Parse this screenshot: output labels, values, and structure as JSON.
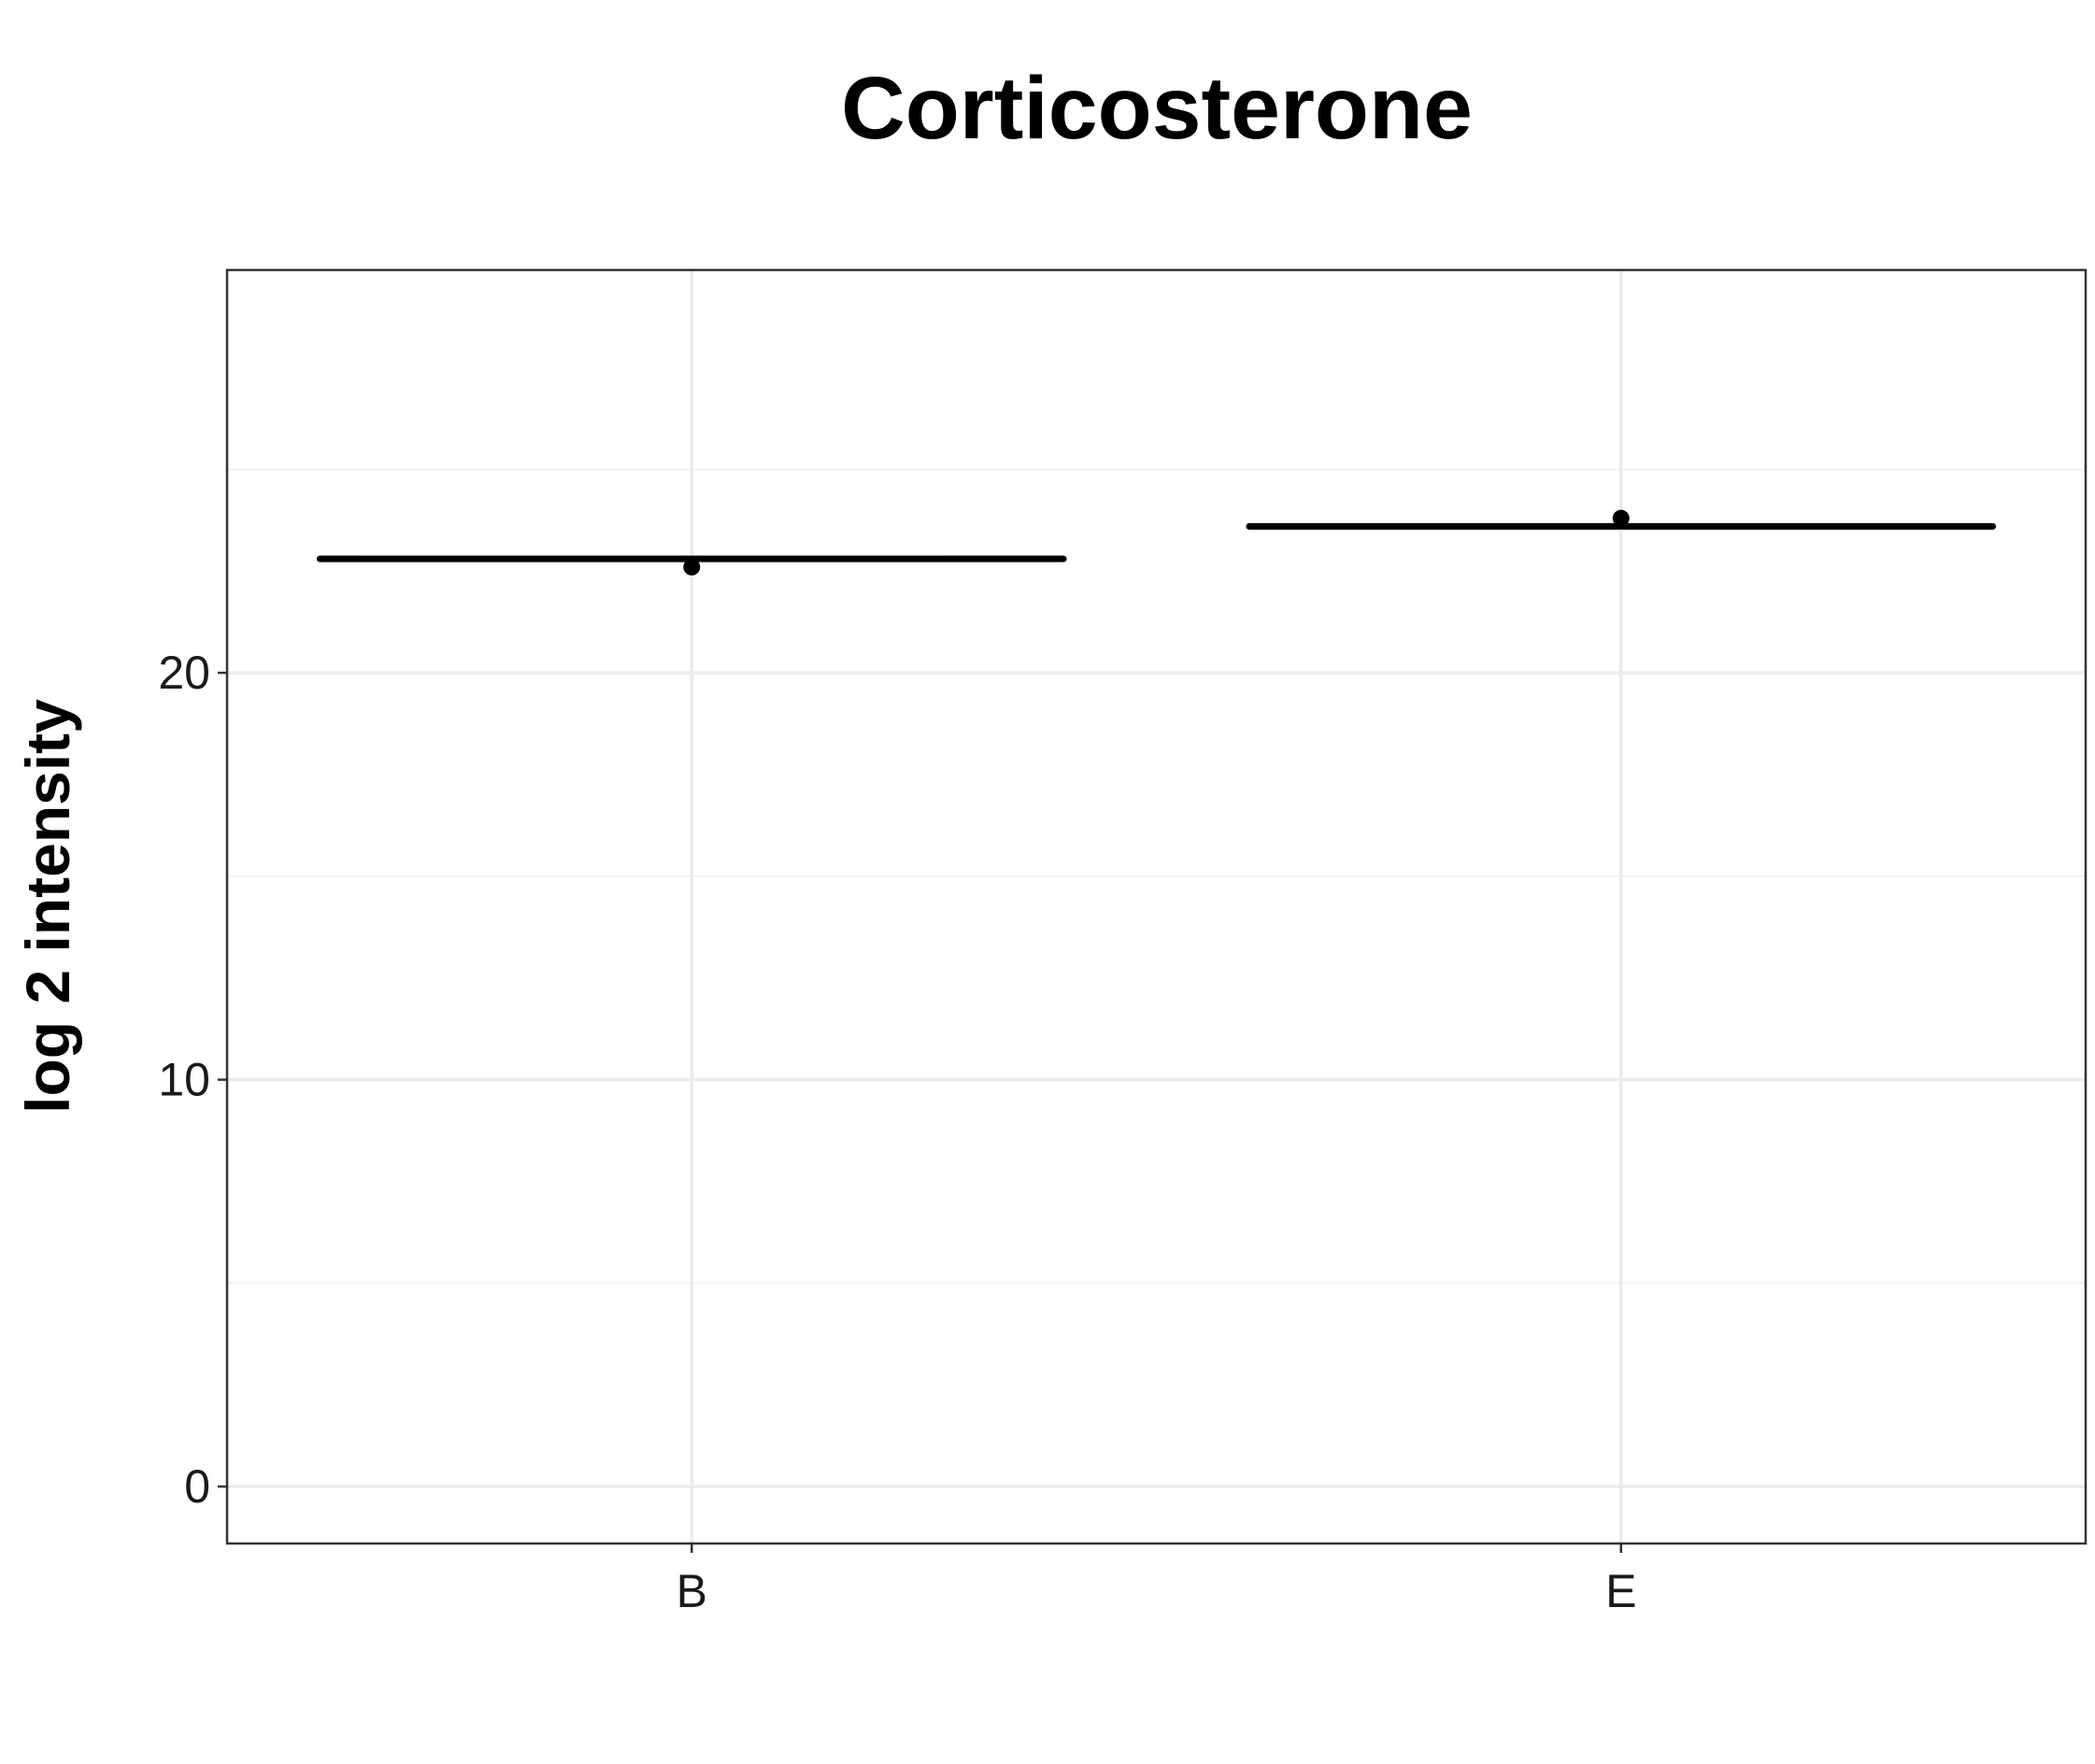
{
  "chart_data": {
    "type": "box",
    "title": "Corticosterone",
    "xlabel": "",
    "ylabel": "log 2 intensity",
    "categories": [
      "B",
      "E"
    ],
    "y_ticks": [
      0,
      10,
      20
    ],
    "ylim": [
      -1.4,
      29.9
    ],
    "grid": true,
    "legend": "none",
    "boxes": [
      {
        "category": "B",
        "median": 22.8,
        "q1": 22.8,
        "q3": 22.8,
        "whisker_low": 22.8,
        "whisker_high": 22.8
      },
      {
        "category": "E",
        "median": 23.6,
        "q1": 23.6,
        "q3": 23.6,
        "whisker_low": 23.6,
        "whisker_high": 23.6
      }
    ],
    "points": [
      {
        "category": "B",
        "y": 22.6
      },
      {
        "category": "E",
        "y": 23.8
      }
    ],
    "colors": {
      "box_line": "#000000",
      "point": "#000000",
      "grid_major": "#ebebeb",
      "grid_minor": "#f2f2f2",
      "panel_border": "#333333",
      "background": "#ffffff"
    }
  }
}
